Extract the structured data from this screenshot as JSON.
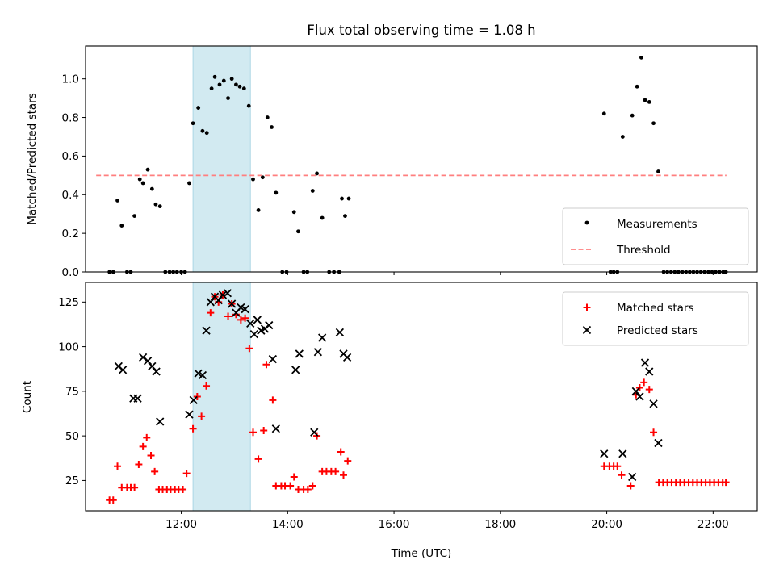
{
  "chart_data": [
    {
      "type": "scatter",
      "title": "Flux total observing time = 1.08 h",
      "xlabel": "",
      "ylabel": "Matched/Predicted stars",
      "ylim": [
        0.0,
        1.17
      ],
      "yticks": [
        0.0,
        0.2,
        0.4,
        0.6,
        0.8,
        1.0
      ],
      "xlim_hours": [
        10.2,
        22.83
      ],
      "xticks_hours": [
        12,
        14,
        16,
        18,
        20,
        22
      ],
      "xtick_labels_visible": false,
      "shaded_interval_hours": [
        12.22,
        13.3
      ],
      "shade_color": "#add8e6",
      "legend": {
        "placement": "lower right",
        "entries": [
          "Measurements",
          "Threshold"
        ]
      },
      "threshold": {
        "name": "Threshold",
        "value": 0.5,
        "x_range_hours": [
          10.4,
          22.25
        ],
        "color": "#ff7f7f",
        "style": "dashed"
      },
      "series": [
        {
          "name": "Measurements",
          "marker": "dot",
          "color": "#000000",
          "points": [
            [
              10.65,
              0.0
            ],
            [
              10.72,
              0.0
            ],
            [
              10.8,
              0.37
            ],
            [
              10.88,
              0.24
            ],
            [
              10.98,
              0.0
            ],
            [
              11.05,
              0.0
            ],
            [
              11.12,
              0.29
            ],
            [
              11.22,
              0.48
            ],
            [
              11.28,
              0.46
            ],
            [
              11.37,
              0.53
            ],
            [
              11.45,
              0.43
            ],
            [
              11.52,
              0.35
            ],
            [
              11.6,
              0.34
            ],
            [
              11.7,
              0.0
            ],
            [
              11.78,
              0.0
            ],
            [
              11.85,
              0.0
            ],
            [
              11.92,
              0.0
            ],
            [
              12.0,
              0.0
            ],
            [
              12.07,
              0.0
            ],
            [
              12.15,
              0.46
            ],
            [
              12.22,
              0.77
            ],
            [
              12.32,
              0.85
            ],
            [
              12.4,
              0.73
            ],
            [
              12.48,
              0.72
            ],
            [
              12.57,
              0.95
            ],
            [
              12.63,
              1.01
            ],
            [
              12.72,
              0.97
            ],
            [
              12.8,
              0.99
            ],
            [
              12.88,
              0.9
            ],
            [
              12.95,
              1.0
            ],
            [
              13.03,
              0.97
            ],
            [
              13.1,
              0.96
            ],
            [
              13.18,
              0.95
            ],
            [
              13.27,
              0.86
            ],
            [
              13.35,
              0.48
            ],
            [
              13.45,
              0.32
            ],
            [
              13.53,
              0.49
            ],
            [
              13.62,
              0.8
            ],
            [
              13.7,
              0.75
            ],
            [
              13.78,
              0.41
            ],
            [
              13.9,
              0.0
            ],
            [
              13.98,
              0.0
            ],
            [
              14.12,
              0.31
            ],
            [
              14.2,
              0.21
            ],
            [
              14.3,
              0.0
            ],
            [
              14.37,
              0.0
            ],
            [
              14.47,
              0.42
            ],
            [
              14.55,
              0.51
            ],
            [
              14.65,
              0.28
            ],
            [
              14.78,
              0.0
            ],
            [
              14.87,
              0.0
            ],
            [
              14.97,
              0.0
            ],
            [
              15.02,
              0.38
            ],
            [
              15.08,
              0.29
            ],
            [
              15.15,
              0.38
            ],
            [
              19.95,
              0.82
            ],
            [
              20.07,
              0.0
            ],
            [
              20.13,
              0.0
            ],
            [
              20.2,
              0.0
            ],
            [
              20.3,
              0.7
            ],
            [
              20.48,
              0.81
            ],
            [
              20.57,
              0.96
            ],
            [
              20.65,
              1.11
            ],
            [
              20.72,
              0.89
            ],
            [
              20.8,
              0.88
            ],
            [
              20.88,
              0.77
            ],
            [
              20.97,
              0.52
            ],
            [
              21.07,
              0.0
            ],
            [
              21.14,
              0.0
            ],
            [
              21.21,
              0.0
            ],
            [
              21.28,
              0.0
            ],
            [
              21.35,
              0.0
            ],
            [
              21.42,
              0.0
            ],
            [
              21.49,
              0.0
            ],
            [
              21.56,
              0.0
            ],
            [
              21.63,
              0.0
            ],
            [
              21.7,
              0.0
            ],
            [
              21.77,
              0.0
            ],
            [
              21.84,
              0.0
            ],
            [
              21.91,
              0.0
            ],
            [
              21.98,
              0.0
            ],
            [
              22.05,
              0.0
            ],
            [
              22.12,
              0.0
            ],
            [
              22.19,
              0.0
            ],
            [
              22.24,
              0.0
            ]
          ]
        }
      ]
    },
    {
      "type": "scatter",
      "title": "",
      "xlabel": "Time (UTC)",
      "ylabel": "Count",
      "ylim": [
        8,
        136
      ],
      "yticks": [
        25,
        50,
        75,
        100,
        125
      ],
      "xlim_hours": [
        10.2,
        22.83
      ],
      "xticks_hours": [
        12,
        14,
        16,
        18,
        20,
        22
      ],
      "xtick_labels": [
        "12:00",
        "14:00",
        "16:00",
        "18:00",
        "20:00",
        "22:00"
      ],
      "shaded_interval_hours": [
        12.22,
        13.3
      ],
      "shade_color": "#add8e6",
      "legend": {
        "placement": "upper right",
        "entries": [
          "Matched stars",
          "Predicted stars"
        ]
      },
      "series": [
        {
          "name": "Matched stars",
          "marker": "plus",
          "color": "#ff0000",
          "points": [
            [
              10.65,
              14
            ],
            [
              10.72,
              14
            ],
            [
              10.8,
              33
            ],
            [
              10.88,
              21
            ],
            [
              10.98,
              21
            ],
            [
              11.05,
              21
            ],
            [
              11.12,
              21
            ],
            [
              11.2,
              34
            ],
            [
              11.28,
              44
            ],
            [
              11.35,
              49
            ],
            [
              11.43,
              39
            ],
            [
              11.5,
              30
            ],
            [
              11.58,
              20
            ],
            [
              11.65,
              20
            ],
            [
              11.73,
              20
            ],
            [
              11.8,
              20
            ],
            [
              11.88,
              20
            ],
            [
              11.95,
              20
            ],
            [
              12.03,
              20
            ],
            [
              12.1,
              29
            ],
            [
              12.22,
              54
            ],
            [
              12.3,
              72
            ],
            [
              12.38,
              61
            ],
            [
              12.47,
              78
            ],
            [
              12.55,
              119
            ],
            [
              12.63,
              128
            ],
            [
              12.7,
              125
            ],
            [
              12.78,
              129
            ],
            [
              12.88,
              117
            ],
            [
              12.95,
              124
            ],
            [
              13.03,
              118
            ],
            [
              13.12,
              115
            ],
            [
              13.2,
              116
            ],
            [
              13.28,
              99
            ],
            [
              13.35,
              52
            ],
            [
              13.45,
              37
            ],
            [
              13.55,
              53
            ],
            [
              13.6,
              90
            ],
            [
              13.72,
              70
            ],
            [
              13.78,
              22
            ],
            [
              13.88,
              22
            ],
            [
              13.95,
              22
            ],
            [
              14.05,
              22
            ],
            [
              14.12,
              27
            ],
            [
              14.2,
              20
            ],
            [
              14.3,
              20
            ],
            [
              14.38,
              20
            ],
            [
              14.47,
              22
            ],
            [
              14.55,
              50
            ],
            [
              14.65,
              30
            ],
            [
              14.73,
              30
            ],
            [
              14.82,
              30
            ],
            [
              14.9,
              30
            ],
            [
              15.0,
              41
            ],
            [
              15.05,
              28
            ],
            [
              15.13,
              36
            ],
            [
              19.95,
              33
            ],
            [
              20.05,
              33
            ],
            [
              20.13,
              33
            ],
            [
              20.2,
              33
            ],
            [
              20.28,
              28
            ],
            [
              20.45,
              22
            ],
            [
              20.55,
              73
            ],
            [
              20.62,
              77
            ],
            [
              20.7,
              80
            ],
            [
              20.8,
              76
            ],
            [
              20.88,
              52
            ],
            [
              20.98,
              24
            ],
            [
              21.06,
              24
            ],
            [
              21.14,
              24
            ],
            [
              21.22,
              24
            ],
            [
              21.3,
              24
            ],
            [
              21.38,
              24
            ],
            [
              21.46,
              24
            ],
            [
              21.54,
              24
            ],
            [
              21.62,
              24
            ],
            [
              21.7,
              24
            ],
            [
              21.78,
              24
            ],
            [
              21.86,
              24
            ],
            [
              21.94,
              24
            ],
            [
              22.02,
              24
            ],
            [
              22.1,
              24
            ],
            [
              22.18,
              24
            ],
            [
              22.24,
              24
            ]
          ]
        },
        {
          "name": "Predicted stars",
          "marker": "x",
          "color": "#000000",
          "points": [
            [
              10.82,
              89
            ],
            [
              10.9,
              87
            ],
            [
              11.1,
              71
            ],
            [
              11.18,
              71
            ],
            [
              11.28,
              94
            ],
            [
              11.37,
              92
            ],
            [
              11.45,
              89
            ],
            [
              11.53,
              86
            ],
            [
              11.6,
              58
            ],
            [
              12.15,
              62
            ],
            [
              12.23,
              70
            ],
            [
              12.32,
              85
            ],
            [
              12.4,
              84
            ],
            [
              12.47,
              109
            ],
            [
              12.55,
              125
            ],
            [
              12.63,
              128
            ],
            [
              12.7,
              126
            ],
            [
              12.78,
              129
            ],
            [
              12.87,
              130
            ],
            [
              12.95,
              124
            ],
            [
              13.03,
              119
            ],
            [
              13.12,
              122
            ],
            [
              13.2,
              121
            ],
            [
              13.3,
              113
            ],
            [
              13.37,
              107
            ],
            [
              13.43,
              115
            ],
            [
              13.5,
              109
            ],
            [
              13.57,
              110
            ],
            [
              13.65,
              112
            ],
            [
              13.72,
              93
            ],
            [
              13.78,
              54
            ],
            [
              14.15,
              87
            ],
            [
              14.22,
              96
            ],
            [
              14.5,
              52
            ],
            [
              14.57,
              97
            ],
            [
              14.65,
              105
            ],
            [
              14.98,
              108
            ],
            [
              15.05,
              96
            ],
            [
              15.12,
              94
            ],
            [
              19.95,
              40
            ],
            [
              20.3,
              40
            ],
            [
              20.48,
              27
            ],
            [
              20.55,
              75
            ],
            [
              20.62,
              72
            ],
            [
              20.72,
              91
            ],
            [
              20.8,
              86
            ],
            [
              20.88,
              68
            ],
            [
              20.97,
              46
            ]
          ]
        }
      ]
    }
  ]
}
